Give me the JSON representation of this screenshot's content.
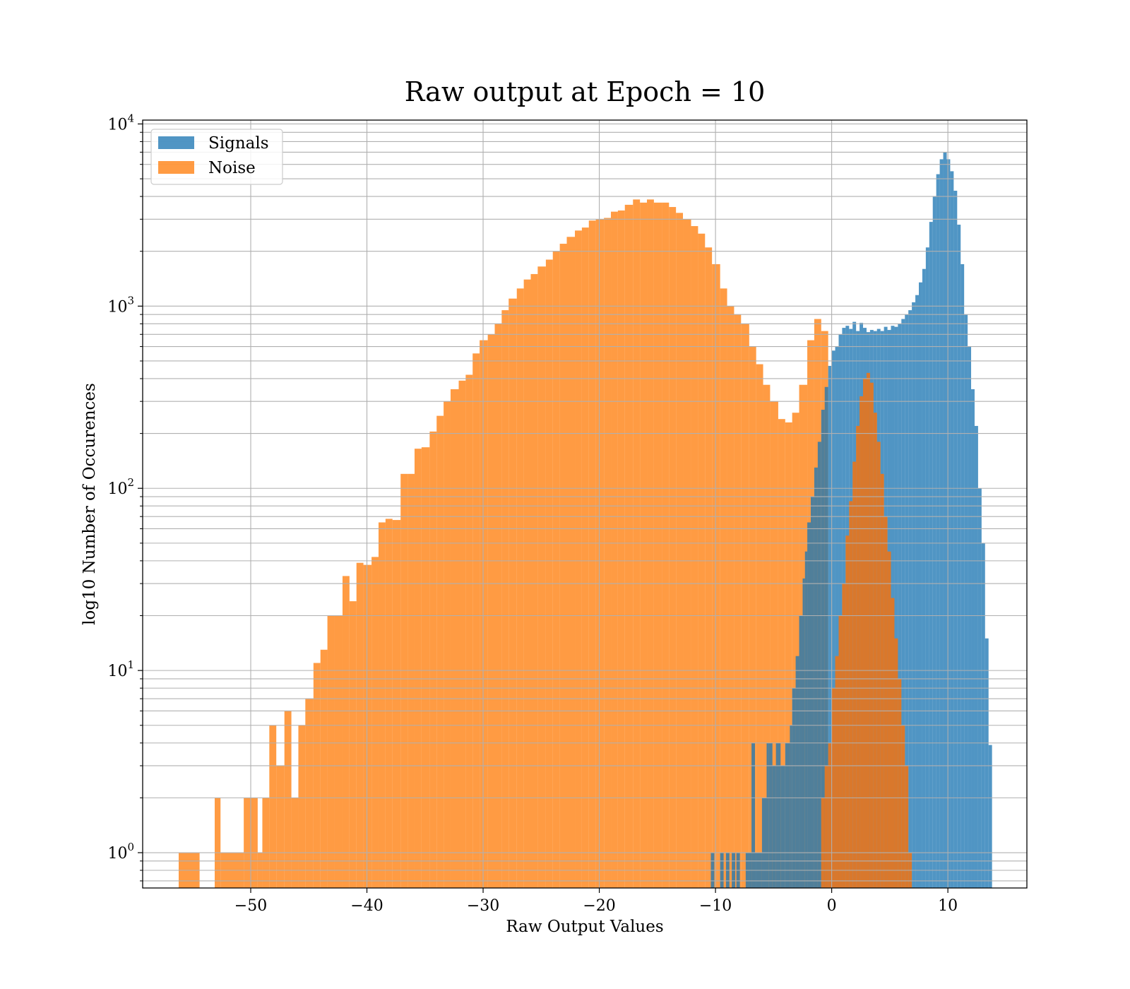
{
  "chart_data": {
    "type": "histogram",
    "title": "Raw output at Epoch = 10",
    "xlabel": "Raw Output Values",
    "ylabel": "log10 Number of Occurences",
    "xlim": [
      -59.3,
      16.8
    ],
    "ylim": [
      0.64,
      10500
    ],
    "yscale": "log",
    "grid": true,
    "legend_position": "upper left",
    "x_ticks": [
      {
        "value": -50,
        "label": "−50"
      },
      {
        "value": -40,
        "label": "−40"
      },
      {
        "value": -30,
        "label": "−30"
      },
      {
        "value": -20,
        "label": "−20"
      },
      {
        "value": -10,
        "label": "−10"
      },
      {
        "value": 0,
        "label": "0"
      },
      {
        "value": 10,
        "label": "10"
      }
    ],
    "y_ticks": [
      {
        "value": 1,
        "base": "10",
        "exp": "0"
      },
      {
        "value": 10,
        "base": "10",
        "exp": "1"
      },
      {
        "value": 100,
        "base": "10",
        "exp": "2"
      },
      {
        "value": 1000,
        "base": "10",
        "exp": "3"
      },
      {
        "value": 10000,
        "base": "10",
        "exp": "4"
      }
    ],
    "series": [
      {
        "name": "Noise",
        "color": "#ff7f0e",
        "opacity": 0.78,
        "bins": [
          [
            -56.2,
            -54.4,
            1
          ],
          [
            -54.4,
            -53.1,
            0
          ],
          [
            -53.1,
            -52.6,
            2
          ],
          [
            -52.6,
            -50.6,
            1
          ],
          [
            -50.6,
            -49.4,
            2
          ],
          [
            -49.4,
            -49.0,
            1
          ],
          [
            -49.0,
            -48.4,
            2
          ],
          [
            -48.4,
            -47.8,
            5
          ],
          [
            -47.8,
            -47.1,
            3
          ],
          [
            -47.1,
            -46.5,
            6
          ],
          [
            -46.5,
            -45.9,
            2
          ],
          [
            -45.9,
            -45.3,
            5
          ],
          [
            -45.3,
            -44.6,
            7
          ],
          [
            -44.6,
            -44.0,
            11
          ],
          [
            -44.0,
            -43.4,
            13
          ],
          [
            -43.4,
            -42.8,
            20
          ],
          [
            -42.8,
            -42.1,
            20
          ],
          [
            -42.1,
            -41.5,
            33
          ],
          [
            -41.5,
            -40.9,
            24
          ],
          [
            -40.9,
            -40.3,
            39
          ],
          [
            -40.3,
            -39.6,
            38
          ],
          [
            -39.6,
            -39.0,
            42
          ],
          [
            -39.0,
            -38.4,
            65
          ],
          [
            -38.4,
            -37.8,
            68
          ],
          [
            -37.8,
            -37.1,
            67
          ],
          [
            -37.1,
            -36.5,
            120
          ],
          [
            -36.5,
            -35.9,
            120
          ],
          [
            -35.9,
            -35.3,
            165
          ],
          [
            -35.3,
            -34.6,
            168
          ],
          [
            -34.6,
            -34.0,
            205
          ],
          [
            -34.0,
            -33.4,
            250
          ],
          [
            -33.4,
            -32.8,
            300
          ],
          [
            -32.8,
            -32.1,
            350
          ],
          [
            -32.1,
            -31.5,
            390
          ],
          [
            -31.5,
            -30.9,
            420
          ],
          [
            -30.9,
            -30.3,
            550
          ],
          [
            -30.3,
            -29.6,
            650
          ],
          [
            -29.6,
            -29.0,
            700
          ],
          [
            -29.0,
            -28.4,
            800
          ],
          [
            -28.4,
            -27.8,
            950
          ],
          [
            -27.8,
            -27.1,
            1100
          ],
          [
            -27.1,
            -26.5,
            1250
          ],
          [
            -26.5,
            -25.9,
            1400
          ],
          [
            -25.9,
            -25.3,
            1500
          ],
          [
            -25.3,
            -24.6,
            1650
          ],
          [
            -24.6,
            -24.0,
            1800
          ],
          [
            -24.0,
            -23.4,
            2000
          ],
          [
            -23.4,
            -22.8,
            2200
          ],
          [
            -22.8,
            -22.1,
            2400
          ],
          [
            -22.1,
            -21.5,
            2600
          ],
          [
            -21.5,
            -20.9,
            2700
          ],
          [
            -20.9,
            -20.3,
            2950
          ],
          [
            -20.3,
            -19.6,
            3000
          ],
          [
            -19.6,
            -19.0,
            3050
          ],
          [
            -19.0,
            -18.4,
            3300
          ],
          [
            -18.4,
            -17.8,
            3350
          ],
          [
            -17.8,
            -17.1,
            3600
          ],
          [
            -17.1,
            -16.5,
            3850
          ],
          [
            -16.5,
            -15.9,
            3700
          ],
          [
            -15.9,
            -15.3,
            3850
          ],
          [
            -15.3,
            -14.6,
            3700
          ],
          [
            -14.6,
            -14.0,
            3700
          ],
          [
            -14.0,
            -13.4,
            3500
          ],
          [
            -13.4,
            -12.8,
            3250
          ],
          [
            -12.8,
            -12.1,
            3000
          ],
          [
            -12.1,
            -11.5,
            2750
          ],
          [
            -11.5,
            -10.9,
            2500
          ],
          [
            -10.9,
            -10.3,
            2100
          ],
          [
            -10.3,
            -9.6,
            1700
          ],
          [
            -9.6,
            -9.0,
            1250
          ],
          [
            -9.0,
            -8.4,
            1000
          ],
          [
            -8.4,
            -7.8,
            900
          ],
          [
            -7.8,
            -7.1,
            800
          ],
          [
            -7.1,
            -6.5,
            600
          ],
          [
            -6.5,
            -5.9,
            480
          ],
          [
            -5.9,
            -5.3,
            370
          ],
          [
            -5.3,
            -4.6,
            300
          ],
          [
            -4.6,
            -4.0,
            240
          ],
          [
            -4.0,
            -3.4,
            230
          ],
          [
            -3.4,
            -2.8,
            260
          ],
          [
            -2.8,
            -2.1,
            370
          ],
          [
            -2.1,
            -1.5,
            650
          ],
          [
            -1.5,
            -0.9,
            850
          ],
          [
            -0.9,
            -0.3,
            730
          ]
        ]
      },
      {
        "name": "Signals",
        "color": "#1f77b4",
        "opacity": 0.78,
        "bins": [
          [
            -10.4,
            -10.1,
            1
          ],
          [
            -9.6,
            -9.3,
            1
          ],
          [
            -9.1,
            -8.8,
            1
          ],
          [
            -8.6,
            -8.3,
            1
          ],
          [
            -8.2,
            -7.9,
            1
          ],
          [
            -7.4,
            -6.9,
            1
          ],
          [
            -6.9,
            -6.6,
            4
          ],
          [
            -6.6,
            -6.0,
            1
          ],
          [
            -6.0,
            -5.6,
            2
          ],
          [
            -5.6,
            -5.4,
            4
          ],
          [
            -5.4,
            -5.1,
            4
          ],
          [
            -5.1,
            -4.8,
            3
          ],
          [
            -4.8,
            -4.4,
            4
          ],
          [
            -4.4,
            -4.0,
            3
          ],
          [
            -4.0,
            -3.6,
            4
          ],
          [
            -3.6,
            -3.4,
            5
          ],
          [
            -3.4,
            -3.1,
            8
          ],
          [
            -3.1,
            -2.8,
            12
          ],
          [
            -2.8,
            -2.5,
            20
          ],
          [
            -2.5,
            -2.3,
            32
          ],
          [
            -2.3,
            -2.1,
            45
          ],
          [
            -2.1,
            -1.8,
            65
          ],
          [
            -1.8,
            -1.5,
            90
          ],
          [
            -1.5,
            -1.2,
            130
          ],
          [
            -1.2,
            -0.9,
            180
          ],
          [
            -0.9,
            -0.6,
            270
          ],
          [
            -0.6,
            -0.3,
            360
          ],
          [
            -0.3,
            0.0,
            470
          ],
          [
            0.0,
            0.3,
            570
          ],
          [
            0.3,
            0.6,
            600
          ],
          [
            0.6,
            0.9,
            700
          ],
          [
            0.9,
            1.2,
            760
          ],
          [
            1.2,
            1.5,
            780
          ],
          [
            1.5,
            1.8,
            750
          ],
          [
            1.8,
            2.1,
            820
          ],
          [
            2.1,
            2.4,
            730
          ],
          [
            2.4,
            2.7,
            810
          ],
          [
            2.7,
            3.0,
            760
          ],
          [
            3.0,
            3.3,
            720
          ],
          [
            3.3,
            3.6,
            740
          ],
          [
            3.6,
            3.9,
            730
          ],
          [
            3.9,
            4.2,
            750
          ],
          [
            4.2,
            4.5,
            730
          ],
          [
            4.5,
            4.8,
            770
          ],
          [
            4.8,
            5.1,
            740
          ],
          [
            5.1,
            5.4,
            780
          ],
          [
            5.4,
            5.7,
            770
          ],
          [
            5.7,
            6.0,
            800
          ],
          [
            6.0,
            6.3,
            850
          ],
          [
            6.3,
            6.6,
            900
          ],
          [
            6.6,
            6.9,
            950
          ],
          [
            6.9,
            7.2,
            1050
          ],
          [
            7.2,
            7.5,
            1150
          ],
          [
            7.5,
            7.8,
            1350
          ],
          [
            7.8,
            8.1,
            1600
          ],
          [
            8.1,
            8.4,
            2100
          ],
          [
            8.4,
            8.7,
            2900
          ],
          [
            8.7,
            9.0,
            4000
          ],
          [
            9.0,
            9.3,
            5300
          ],
          [
            9.3,
            9.6,
            6400
          ],
          [
            9.6,
            9.9,
            7000
          ],
          [
            9.9,
            10.2,
            6400
          ],
          [
            10.2,
            10.5,
            5500
          ],
          [
            10.5,
            10.8,
            4300
          ],
          [
            10.8,
            11.1,
            2800
          ],
          [
            11.1,
            11.4,
            1700
          ],
          [
            11.4,
            11.7,
            900
          ],
          [
            11.7,
            12.0,
            600
          ],
          [
            12.0,
            12.3,
            350
          ],
          [
            12.3,
            12.6,
            220
          ],
          [
            12.6,
            12.9,
            100
          ],
          [
            12.9,
            13.2,
            50
          ],
          [
            13.2,
            13.5,
            15
          ],
          [
            13.5,
            13.8,
            3.9
          ]
        ]
      },
      {
        "name": "",
        "color": "#d9782c",
        "opacity": 1.0,
        "bins": [
          [
            -0.9,
            -0.6,
            2
          ],
          [
            -0.6,
            -0.3,
            3
          ],
          [
            -0.3,
            0.0,
            4
          ],
          [
            0.0,
            0.3,
            8
          ],
          [
            0.3,
            0.6,
            12
          ],
          [
            0.6,
            0.9,
            20
          ],
          [
            0.9,
            1.2,
            30
          ],
          [
            1.2,
            1.5,
            55
          ],
          [
            1.5,
            1.8,
            85
          ],
          [
            1.8,
            2.1,
            140
          ],
          [
            2.1,
            2.4,
            220
          ],
          [
            2.4,
            2.7,
            320
          ],
          [
            2.7,
            3.0,
            400
          ],
          [
            3.0,
            3.3,
            430
          ],
          [
            3.3,
            3.6,
            380
          ],
          [
            3.6,
            3.9,
            260
          ],
          [
            3.9,
            4.2,
            180
          ],
          [
            4.2,
            4.5,
            120
          ],
          [
            4.5,
            4.8,
            70
          ],
          [
            4.8,
            5.1,
            45
          ],
          [
            5.1,
            5.4,
            25
          ],
          [
            5.4,
            5.7,
            15
          ],
          [
            5.7,
            6.0,
            9
          ],
          [
            6.0,
            6.3,
            5
          ],
          [
            6.3,
            6.6,
            3
          ],
          [
            6.6,
            6.9,
            1
          ]
        ]
      }
    ]
  }
}
